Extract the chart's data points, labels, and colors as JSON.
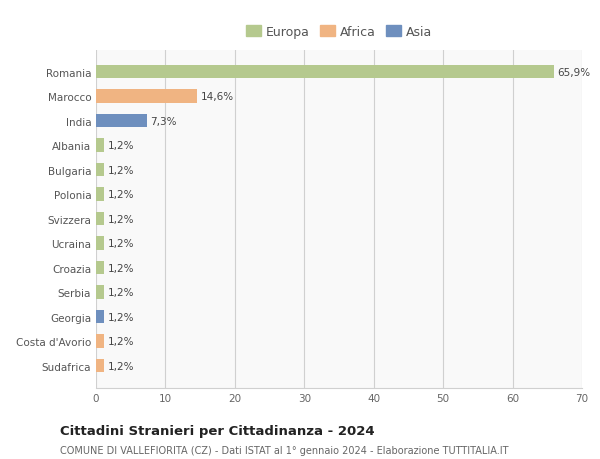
{
  "countries": [
    "Romania",
    "Marocco",
    "India",
    "Albania",
    "Bulgaria",
    "Polonia",
    "Svizzera",
    "Ucraina",
    "Croazia",
    "Serbia",
    "Georgia",
    "Costa d'Avorio",
    "Sudafrica"
  ],
  "values": [
    65.9,
    14.6,
    7.3,
    1.2,
    1.2,
    1.2,
    1.2,
    1.2,
    1.2,
    1.2,
    1.2,
    1.2,
    1.2
  ],
  "labels": [
    "65,9%",
    "14,6%",
    "7,3%",
    "1,2%",
    "1,2%",
    "1,2%",
    "1,2%",
    "1,2%",
    "1,2%",
    "1,2%",
    "1,2%",
    "1,2%",
    "1,2%"
  ],
  "colors": [
    "#b5c98e",
    "#f0b482",
    "#6e8fbe",
    "#b5c98e",
    "#b5c98e",
    "#b5c98e",
    "#b5c98e",
    "#b5c98e",
    "#b5c98e",
    "#b5c98e",
    "#6e8fbe",
    "#f0b482",
    "#f0b482"
  ],
  "legend_labels": [
    "Europa",
    "Africa",
    "Asia"
  ],
  "legend_colors": [
    "#b5c98e",
    "#f0b482",
    "#6e8fbe"
  ],
  "xlim": [
    0,
    70
  ],
  "xticks": [
    0,
    10,
    20,
    30,
    40,
    50,
    60,
    70
  ],
  "title": "Cittadini Stranieri per Cittadinanza - 2024",
  "subtitle": "COMUNE DI VALLEFIORITA (CZ) - Dati ISTAT al 1° gennaio 2024 - Elaborazione TUTTITALIA.IT",
  "background_color": "#ffffff",
  "plot_bg_color": "#f9f9f9",
  "grid_color": "#d0d0d0",
  "bar_height": 0.55
}
